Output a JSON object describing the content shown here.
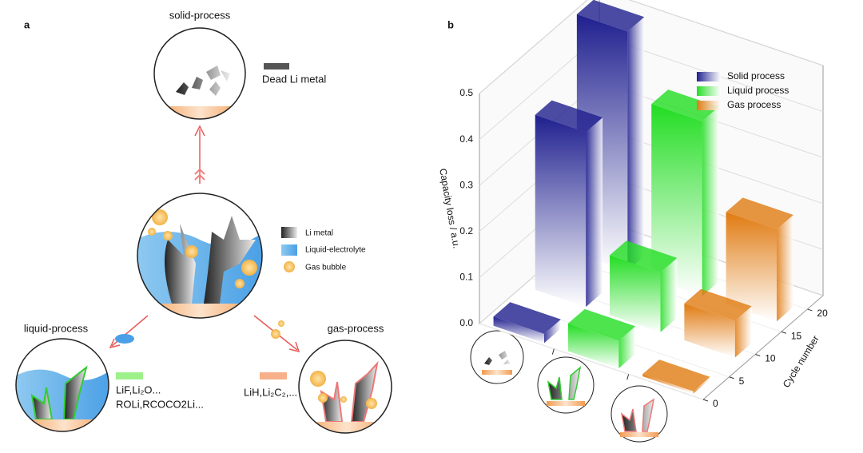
{
  "panel_a": {
    "label": "a",
    "top": "solid-process",
    "dead": "Dead Li metal",
    "legend": [
      "Li metal",
      "Liquid-electrolyte",
      "Gas bubble"
    ],
    "left": "liquid-process",
    "left_products": [
      "LiF,Li₂O...",
      "ROLi,RCOCO2Li..."
    ],
    "right": "gas-process",
    "right_products": "LiH,Li₂C₂,..."
  },
  "chart_data": {
    "type": "bar3d",
    "panel_label": "b",
    "ylabel": "Capacity loss / a.u.",
    "zlabel": "Cycle number",
    "categories": [
      null,
      null,
      null
    ],
    "cycles": [
      2,
      10,
      18
    ],
    "series": [
      {
        "name": "Solid process",
        "color": "#1f1f8f",
        "values": [
          0.02,
          0.38,
          0.52
        ]
      },
      {
        "name": "Liquid process",
        "color": "#22dd22",
        "values": [
          0.06,
          0.13,
          0.38
        ]
      },
      {
        "name": "Gas process",
        "color": "#e07a10",
        "values": [
          0.005,
          0.08,
          0.2
        ]
      }
    ],
    "ylim": [
      0,
      0.5
    ],
    "yticks": [
      {
        "value": 0,
        "label": "0.0"
      },
      0.1,
      0.2,
      0.3,
      0.4,
      0.5
    ],
    "zlim": [
      0,
      23
    ],
    "zticks": [
      0,
      5,
      10,
      15,
      20
    ],
    "legend": "upper right"
  }
}
